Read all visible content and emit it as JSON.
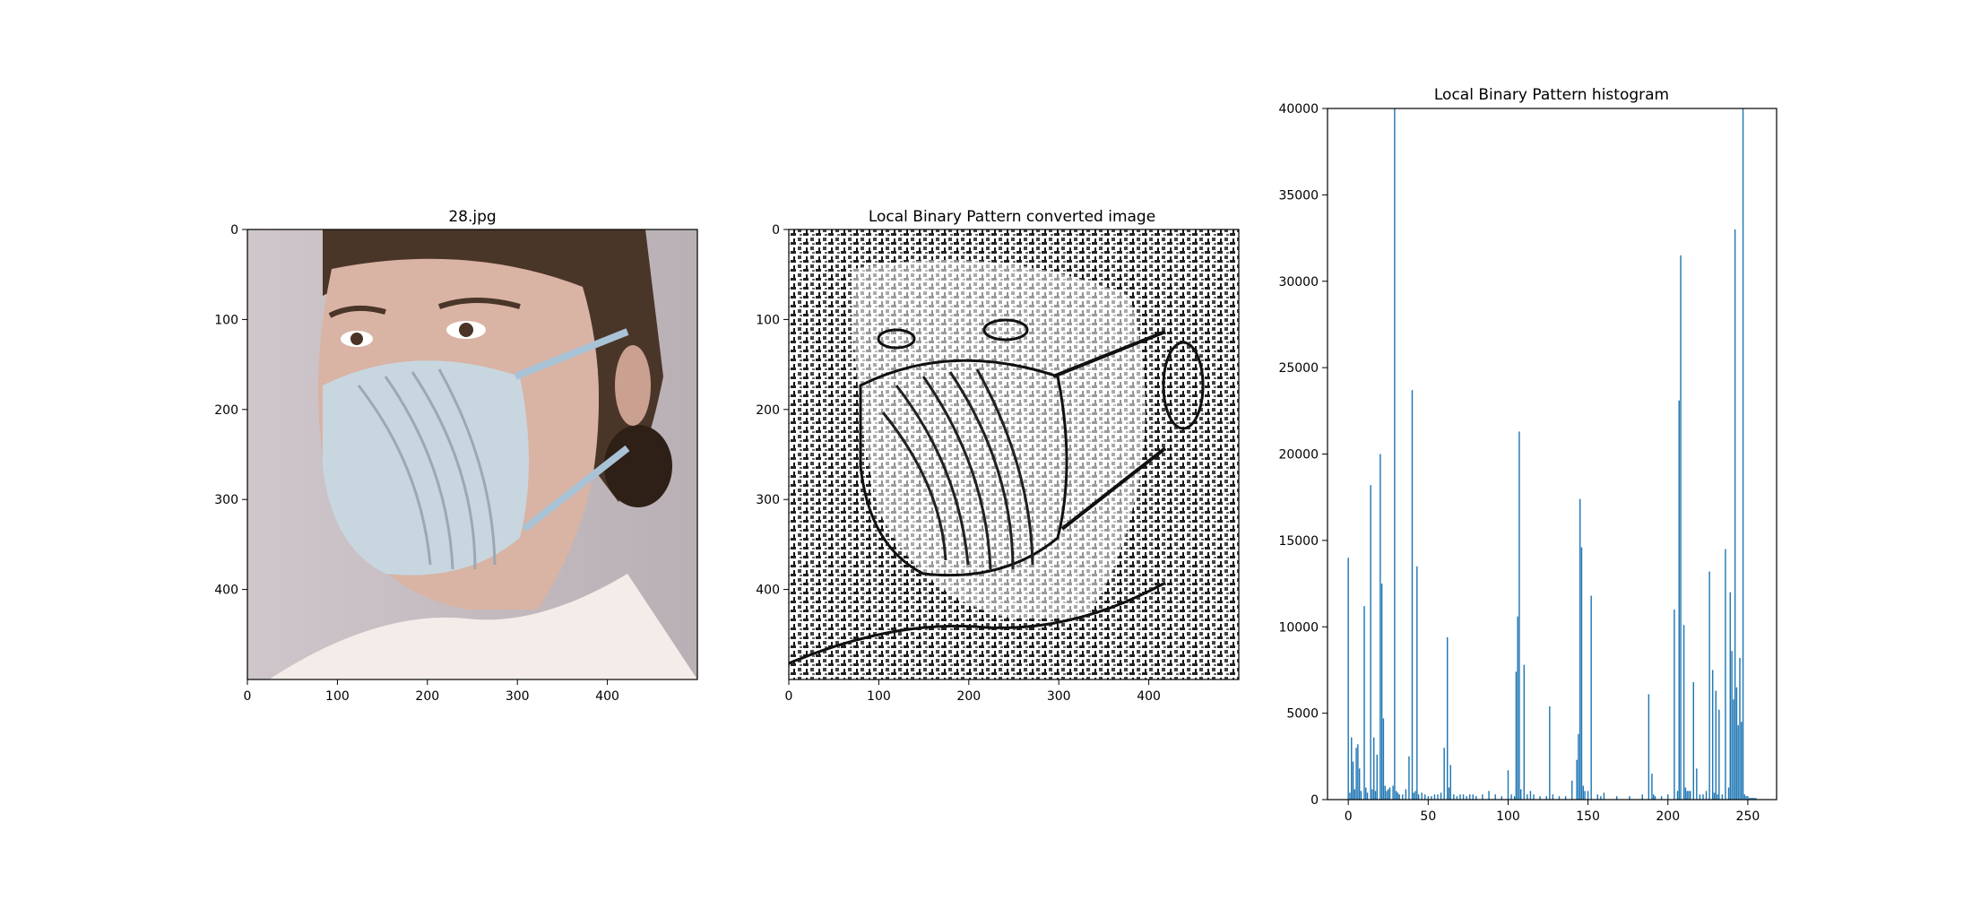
{
  "figure": {
    "colors": {
      "bar": "#1f77b4",
      "axis": "#000000",
      "background": "#ffffff"
    }
  },
  "chart_data": [
    {
      "type": "image",
      "title": "28.jpg",
      "content": "photo of a woman wearing a light-blue surgical face mask",
      "xlim": [
        0,
        500
      ],
      "ylim": [
        500,
        0
      ],
      "xticks": [
        0,
        100,
        200,
        300,
        400
      ],
      "yticks": [
        0,
        100,
        200,
        300,
        400
      ]
    },
    {
      "type": "image",
      "title": "Local Binary Pattern converted image",
      "content": "black-and-white local binary pattern texture of the same photo",
      "xlim": [
        0,
        500
      ],
      "ylim": [
        500,
        0
      ],
      "xticks": [
        0,
        100,
        200,
        300,
        400
      ],
      "yticks": [
        0,
        100,
        200,
        300,
        400
      ]
    },
    {
      "type": "bar",
      "title": "Local Binary Pattern histogram",
      "xlim": [
        -13,
        268
      ],
      "ylim": [
        0,
        40000
      ],
      "xticks": [
        0,
        50,
        100,
        150,
        200,
        250
      ],
      "yticks": [
        0,
        5000,
        10000,
        15000,
        20000,
        25000,
        30000,
        35000,
        40000
      ],
      "x": [
        0,
        1,
        2,
        3,
        4,
        5,
        6,
        7,
        8,
        10,
        11,
        12,
        14,
        15,
        16,
        17,
        18,
        20,
        21,
        22,
        23,
        24,
        25,
        26,
        28,
        29,
        30,
        31,
        32,
        34,
        36,
        38,
        40,
        41,
        42,
        43,
        44,
        46,
        48,
        50,
        52,
        54,
        56,
        58,
        60,
        62,
        63,
        64,
        66,
        68,
        70,
        72,
        74,
        76,
        78,
        80,
        84,
        88,
        92,
        96,
        100,
        102,
        104,
        105,
        106,
        107,
        108,
        110,
        112,
        114,
        116,
        120,
        124,
        126,
        128,
        132,
        136,
        140,
        143,
        144,
        145,
        146,
        147,
        148,
        150,
        152,
        156,
        158,
        160,
        168,
        176,
        184,
        188,
        190,
        191,
        192,
        196,
        200,
        204,
        206,
        207,
        208,
        210,
        211,
        212,
        213,
        214,
        216,
        218,
        220,
        222,
        224,
        226,
        228,
        229,
        230,
        231,
        232,
        234,
        236,
        238,
        239,
        240,
        241,
        242,
        243,
        244,
        245,
        246,
        247,
        248,
        249,
        250,
        251,
        252,
        253,
        254,
        255
      ],
      "values": [
        14000,
        400,
        3600,
        2200,
        600,
        3000,
        3200,
        1800,
        500,
        11200,
        700,
        400,
        18200,
        600,
        3600,
        500,
        2600,
        20000,
        12500,
        4700,
        800,
        500,
        600,
        700,
        800,
        40000,
        500,
        400,
        300,
        300,
        600,
        2500,
        23700,
        400,
        500,
        13500,
        300,
        400,
        300,
        200,
        200,
        300,
        300,
        400,
        3000,
        9400,
        700,
        2000,
        300,
        200,
        300,
        300,
        200,
        300,
        300,
        200,
        300,
        500,
        300,
        200,
        1700,
        300,
        200,
        7400,
        10600,
        21300,
        600,
        7800,
        300,
        500,
        300,
        200,
        200,
        5400,
        300,
        200,
        200,
        1100,
        2300,
        3800,
        17400,
        14600,
        800,
        500,
        500,
        11800,
        300,
        200,
        400,
        200,
        200,
        300,
        6100,
        1500,
        300,
        200,
        200,
        300,
        11000,
        500,
        23100,
        31500,
        10100,
        700,
        500,
        500,
        500,
        6800,
        1800,
        300,
        300,
        500,
        13200,
        7500,
        400,
        6300,
        300,
        5200,
        300,
        14500,
        700,
        12000,
        8600,
        5800,
        33000,
        6500,
        4300,
        8200,
        4500,
        40000,
        300,
        200,
        200,
        100,
        100,
        100,
        100,
        100
      ]
    }
  ]
}
